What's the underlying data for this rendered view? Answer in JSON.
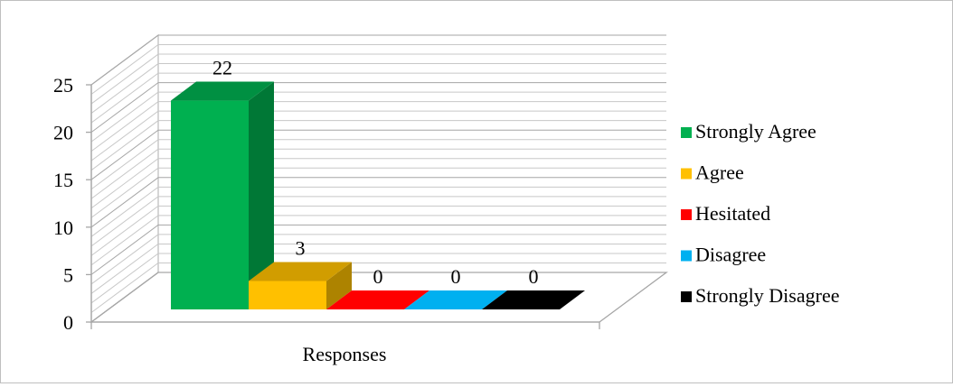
{
  "chart_data": {
    "type": "bar",
    "style": "3d-column",
    "categories": [
      "Responses"
    ],
    "xlabel": "Responses",
    "ylabel": "",
    "ylim": [
      0,
      25
    ],
    "yticks": [
      0,
      5,
      10,
      15,
      20,
      25
    ],
    "grid": true,
    "legend_position": "right",
    "series": [
      {
        "name": "Strongly Agree",
        "values": [
          22
        ],
        "color": "#00b050"
      },
      {
        "name": "Agree",
        "values": [
          3
        ],
        "color": "#ffc000"
      },
      {
        "name": "Hesitated",
        "values": [
          0
        ],
        "color": "#ff0000"
      },
      {
        "name": "Disagree",
        "values": [
          0
        ],
        "color": "#00b0f0"
      },
      {
        "name": "Strongly Disagree",
        "values": [
          0
        ],
        "color": "#000000"
      }
    ]
  }
}
